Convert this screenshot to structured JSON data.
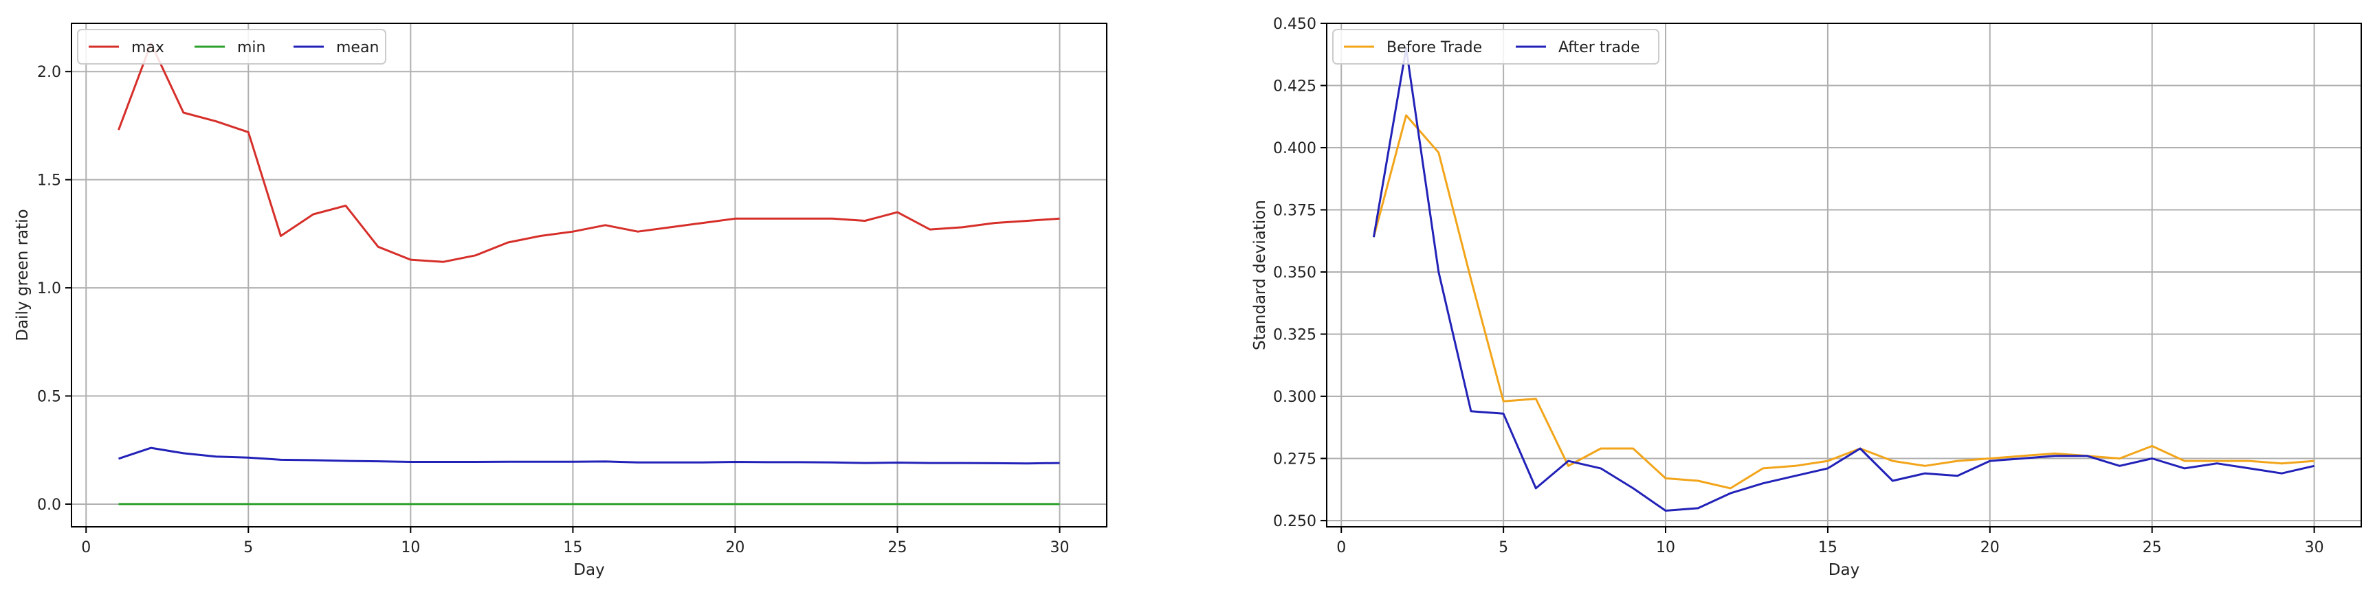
{
  "colors": {
    "max": "#d62f2a",
    "min": "#2ca02c",
    "mean": "#2222b8",
    "before": "#f2a51a",
    "after": "#2222b8",
    "grid": "#b0b0b0",
    "axis": "#000000"
  },
  "chart_data": [
    {
      "type": "line",
      "title": "",
      "xlabel": "Day",
      "ylabel": "Daily green ratio",
      "xlim": [
        -0.45,
        31.45
      ],
      "ylim": [
        -0.105,
        2.223
      ],
      "xticks": [
        0,
        5,
        10,
        15,
        20,
        25,
        30
      ],
      "xtick_labels": [
        "0",
        "5",
        "10",
        "15",
        "20",
        "25",
        "30"
      ],
      "yticks": [
        0.0,
        0.5,
        1.0,
        1.5,
        2.0
      ],
      "ytick_labels": [
        "0.0",
        "0.5",
        "1.0",
        "1.5",
        "2.0"
      ],
      "grid": true,
      "legend": {
        "placement": "top-left",
        "orientation": "horizontal"
      },
      "x": [
        1,
        2,
        3,
        4,
        5,
        6,
        7,
        8,
        9,
        10,
        11,
        12,
        13,
        14,
        15,
        16,
        17,
        18,
        19,
        20,
        21,
        22,
        23,
        24,
        25,
        26,
        27,
        28,
        29,
        30
      ],
      "series": [
        {
          "name": "max",
          "color_key": "max",
          "values": [
            1.73,
            2.13,
            1.81,
            1.77,
            1.72,
            1.24,
            1.34,
            1.38,
            1.19,
            1.13,
            1.12,
            1.15,
            1.21,
            1.24,
            1.26,
            1.29,
            1.26,
            1.28,
            1.3,
            1.32,
            1.32,
            1.32,
            1.32,
            1.31,
            1.35,
            1.27,
            1.28,
            1.3,
            1.31,
            1.32
          ]
        },
        {
          "name": "min",
          "color_key": "min",
          "values": [
            0,
            0,
            0,
            0,
            0,
            0,
            0,
            0,
            0,
            0,
            0,
            0,
            0,
            0,
            0,
            0,
            0,
            0,
            0,
            0,
            0,
            0,
            0,
            0,
            0,
            0,
            0,
            0,
            0,
            0
          ]
        },
        {
          "name": "mean",
          "color_key": "mean",
          "values": [
            0.21,
            0.26,
            0.235,
            0.22,
            0.215,
            0.205,
            0.203,
            0.2,
            0.198,
            0.195,
            0.195,
            0.195,
            0.196,
            0.196,
            0.196,
            0.197,
            0.193,
            0.193,
            0.193,
            0.195,
            0.194,
            0.194,
            0.193,
            0.19,
            0.192,
            0.19,
            0.19,
            0.189,
            0.188,
            0.19
          ]
        }
      ]
    },
    {
      "type": "line",
      "title": "",
      "xlabel": "Day",
      "ylabel": "Standard deviation",
      "xlim": [
        -0.45,
        31.45
      ],
      "ylim": [
        0.2475,
        0.45
      ],
      "xticks": [
        0,
        5,
        10,
        15,
        20,
        25,
        30
      ],
      "xtick_labels": [
        "0",
        "5",
        "10",
        "15",
        "20",
        "25",
        "30"
      ],
      "yticks": [
        0.25,
        0.275,
        0.3,
        0.325,
        0.35,
        0.375,
        0.4,
        0.425,
        0.45
      ],
      "ytick_labels": [
        "0.250",
        "0.275",
        "0.300",
        "0.325",
        "0.350",
        "0.375",
        "0.400",
        "0.425",
        "0.450"
      ],
      "grid": true,
      "legend": {
        "placement": "top-left",
        "orientation": "horizontal"
      },
      "x": [
        1,
        2,
        3,
        4,
        5,
        6,
        7,
        8,
        9,
        10,
        11,
        12,
        13,
        14,
        15,
        16,
        17,
        18,
        19,
        20,
        21,
        22,
        23,
        24,
        25,
        26,
        27,
        28,
        29,
        30
      ],
      "series": [
        {
          "name": "Before Trade",
          "color_key": "before",
          "values": [
            0.364,
            0.413,
            0.398,
            0.347,
            0.298,
            0.299,
            0.272,
            0.279,
            0.279,
            0.267,
            0.266,
            0.263,
            0.271,
            0.272,
            0.274,
            0.279,
            0.274,
            0.272,
            0.274,
            0.275,
            0.276,
            0.277,
            0.276,
            0.275,
            0.28,
            0.274,
            0.274,
            0.274,
            0.273,
            0.274
          ]
        },
        {
          "name": "After trade",
          "color_key": "after",
          "values": [
            0.364,
            0.44,
            0.35,
            0.294,
            0.293,
            0.263,
            0.274,
            0.271,
            0.263,
            0.254,
            0.255,
            0.261,
            0.265,
            0.268,
            0.271,
            0.279,
            0.266,
            0.269,
            0.268,
            0.274,
            0.275,
            0.276,
            0.276,
            0.272,
            0.275,
            0.271,
            0.273,
            0.271,
            0.269,
            0.272
          ]
        }
      ]
    }
  ]
}
